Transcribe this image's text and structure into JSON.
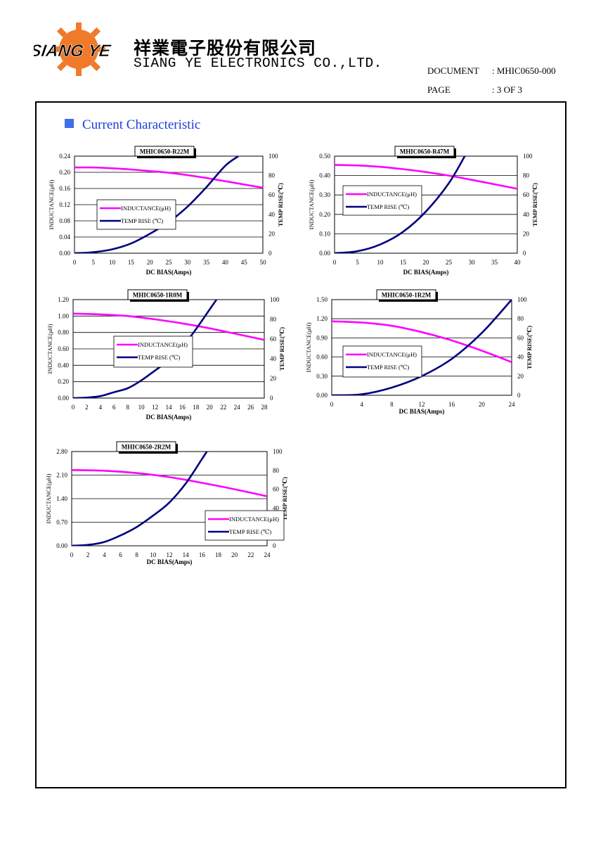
{
  "header": {
    "logo_text": "SIANG YE",
    "company_cn": "祥業電子股份有限公司",
    "company_en": "SIANG YE ELECTRONICS CO.,LTD.",
    "document_label": "DOCUMENT",
    "document_value": ": MHIC0650-000",
    "page_label": "PAGE",
    "page_value": ": 3 OF 3"
  },
  "section": {
    "title": "Current Characteristic"
  },
  "colors": {
    "inductance": "#ff00ff",
    "temp_rise": "#000080",
    "section_marker": "#3f6fe8",
    "section_title": "#1a3fd8"
  },
  "chart_data": [
    {
      "type": "line",
      "title": "MHIC0650-R22M",
      "xlabel": "DC BIAS(Amps)",
      "ylabel": "INDUCTANCE(μH)",
      "y2label": "TEMP RISE(℃)",
      "xticks": [
        "0",
        "5",
        "10",
        "15",
        "20",
        "25",
        "30",
        "35",
        "40",
        "45",
        "50"
      ],
      "yticks": [
        "0.00",
        "0.04",
        "0.08",
        "0.12",
        "0.16",
        "0.20",
        "0.24"
      ],
      "y2ticks": [
        "0",
        "20",
        "40",
        "60",
        "80",
        "100"
      ],
      "xlim": [
        0,
        50
      ],
      "ylim": [
        0,
        0.24
      ],
      "y2lim": [
        0,
        100
      ],
      "legend": [
        "INDUCTANCE(μH)",
        "TEMP RISE (℃)"
      ],
      "series": [
        {
          "name": "INDUCTANCE(μH)",
          "axis": "left",
          "x": [
            0,
            5,
            10,
            15,
            20,
            25,
            30,
            35,
            40,
            45,
            50
          ],
          "y": [
            0.212,
            0.212,
            0.21,
            0.207,
            0.203,
            0.199,
            0.193,
            0.186,
            0.178,
            0.17,
            0.162
          ]
        },
        {
          "name": "TEMP RISE (℃)",
          "axis": "right",
          "x": [
            0,
            5,
            10,
            15,
            20,
            25,
            30,
            35,
            40,
            43.5
          ],
          "y": [
            0,
            1,
            4,
            10,
            20,
            32,
            48,
            68,
            90,
            100
          ]
        }
      ]
    },
    {
      "type": "line",
      "title": "MHIC0650-R47M",
      "xlabel": "DC BIAS(Amps)",
      "ylabel": "INDUCTANCE(μH)",
      "y2label": "TEMP RISE(℃)",
      "xticks": [
        "0",
        "5",
        "10",
        "15",
        "20",
        "25",
        "30",
        "35",
        "40"
      ],
      "yticks": [
        "0.00",
        "0.10",
        "0.20",
        "0.30",
        "0.40",
        "0.50"
      ],
      "y2ticks": [
        "0",
        "20",
        "40",
        "60",
        "80",
        "100"
      ],
      "xlim": [
        0,
        40
      ],
      "ylim": [
        0,
        0.5
      ],
      "y2lim": [
        0,
        100
      ],
      "legend": [
        "INDUCTANCE(μH)",
        "TEMP RISE (℃)"
      ],
      "series": [
        {
          "name": "INDUCTANCE(μH)",
          "axis": "left",
          "x": [
            0,
            5,
            10,
            15,
            20,
            25,
            30,
            35,
            40
          ],
          "y": [
            0.455,
            0.452,
            0.445,
            0.433,
            0.418,
            0.4,
            0.378,
            0.355,
            0.332
          ]
        },
        {
          "name": "TEMP RISE (℃)",
          "axis": "right",
          "x": [
            0,
            5,
            10,
            15,
            20,
            25,
            28.5
          ],
          "y": [
            0,
            2,
            9,
            22,
            43,
            72,
            100
          ]
        }
      ]
    },
    {
      "type": "line",
      "title": "MHIC0650-1R0M",
      "xlabel": "DC BIAS(Amps)",
      "ylabel": "INDUCTANCE(μH)",
      "y2label": "TEMP RISE(℃)",
      "xticks": [
        "0",
        "2",
        "4",
        "6",
        "8",
        "10",
        "12",
        "14",
        "16",
        "18",
        "20",
        "22",
        "24",
        "26",
        "28"
      ],
      "yticks": [
        "0.00",
        "0.20",
        "0.40",
        "0.60",
        "0.80",
        "1.00",
        "1.20"
      ],
      "y2ticks": [
        "0",
        "20",
        "40",
        "60",
        "80",
        "100"
      ],
      "xlim": [
        0,
        28
      ],
      "ylim": [
        0,
        1.2
      ],
      "y2lim": [
        0,
        100
      ],
      "legend": [
        "INDUCTANCE(μH)",
        "TEMP RISE (℃)"
      ],
      "series": [
        {
          "name": "INDUCTANCE(μH)",
          "axis": "left",
          "x": [
            0,
            4,
            8,
            12,
            16,
            20,
            24,
            28
          ],
          "y": [
            1.03,
            1.02,
            1.0,
            0.96,
            0.91,
            0.85,
            0.78,
            0.71
          ]
        },
        {
          "name": "TEMP RISE (℃)",
          "axis": "right",
          "x": [
            0,
            2,
            4,
            6,
            8,
            10,
            12,
            14,
            16,
            18,
            20,
            21
          ],
          "y": [
            0,
            0.5,
            2,
            6,
            10,
            18,
            28,
            38,
            52,
            70,
            90,
            100
          ]
        }
      ]
    },
    {
      "type": "line",
      "title": "MHIC0650-1R2M",
      "xlabel": "DC BIAS(Amps)",
      "ylabel": "INDUCTANCE(μH)",
      "y2label": "TEMP RISE(℃)",
      "xticks": [
        "0",
        "4",
        "8",
        "12",
        "16",
        "20",
        "24"
      ],
      "yticks": [
        "0.00",
        "0.30",
        "0.60",
        "0.90",
        "1.20",
        "1.50"
      ],
      "y2ticks": [
        "0",
        "20",
        "40",
        "60",
        "80",
        "100"
      ],
      "xlim": [
        0,
        24
      ],
      "ylim": [
        0,
        1.5
      ],
      "y2lim": [
        0,
        100
      ],
      "legend": [
        "INDUCTANCE(μH)",
        "TEMP RISE (℃)"
      ],
      "series": [
        {
          "name": "INDUCTANCE(μH)",
          "axis": "left",
          "x": [
            0,
            4,
            8,
            12,
            16,
            20,
            24
          ],
          "y": [
            1.16,
            1.14,
            1.09,
            0.99,
            0.86,
            0.7,
            0.52
          ]
        },
        {
          "name": "TEMP RISE (℃)",
          "axis": "right",
          "x": [
            0,
            4,
            8,
            12,
            16,
            20,
            24
          ],
          "y": [
            0,
            1,
            8,
            20,
            38,
            65,
            100
          ]
        }
      ]
    },
    {
      "type": "line",
      "title": "MHIC0650-2R2M",
      "xlabel": "DC BIAS(Amps)",
      "ylabel": "INDUCTANCE(μH)",
      "y2label": "TEMP RISE(℃)",
      "xticks": [
        "0",
        "2",
        "4",
        "6",
        "8",
        "10",
        "12",
        "14",
        "16",
        "18",
        "20",
        "22",
        "24"
      ],
      "yticks": [
        "0.00",
        "0.70",
        "1.40",
        "2.10",
        "2.80"
      ],
      "y2ticks": [
        "0",
        "20",
        "40",
        "60",
        "80",
        "100"
      ],
      "xlim": [
        0,
        24
      ],
      "ylim": [
        0,
        2.8
      ],
      "y2lim": [
        0,
        100
      ],
      "legend": [
        "INDUCTANCE(μH)",
        "TEMP RISE (℃)"
      ],
      "series": [
        {
          "name": "INDUCTANCE(μH)",
          "axis": "left",
          "x": [
            0,
            4,
            8,
            12,
            16,
            20,
            24
          ],
          "y": [
            2.25,
            2.23,
            2.16,
            2.04,
            1.87,
            1.68,
            1.47
          ]
        },
        {
          "name": "TEMP RISE (℃)",
          "axis": "right",
          "x": [
            0,
            2,
            4,
            6,
            8,
            10,
            12,
            14,
            16,
            16.6
          ],
          "y": [
            0,
            1,
            4,
            11,
            20,
            32,
            46,
            66,
            92,
            100
          ]
        }
      ]
    }
  ]
}
